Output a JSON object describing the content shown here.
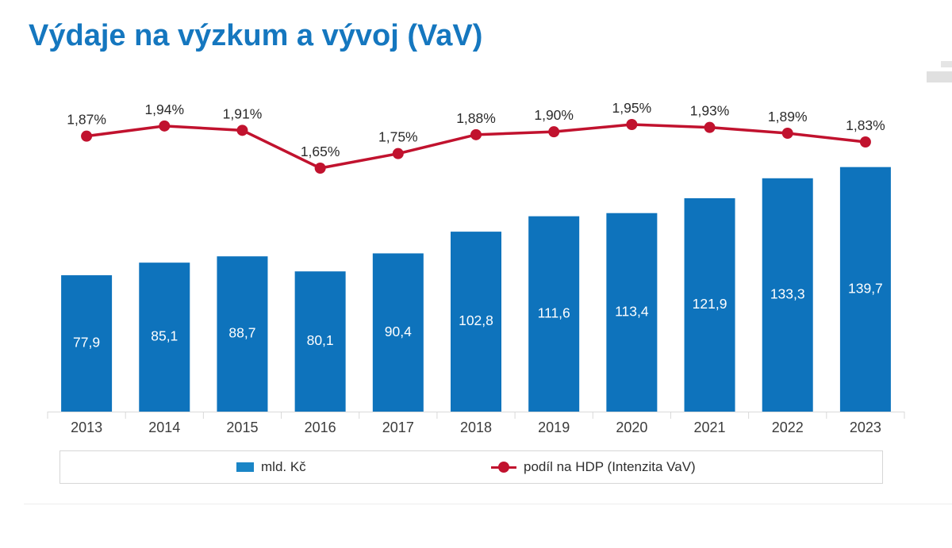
{
  "page": {
    "title": "Výdaje na výzkum a vývoj (VaV)"
  },
  "colors": {
    "title": "#1577bf",
    "bar": "#0e73bc",
    "bar_label": "#ffffff",
    "line": "#c1122e",
    "axis": "#d9d9d9",
    "tick_label": "#3c3c3c",
    "point_label": "#2b2b2b",
    "legend_border": "#d6d6d6"
  },
  "chart_data": {
    "type": "bar",
    "subtype": "bar-with-line-overlay",
    "title": "Výdaje na výzkum a vývoj (VaV)",
    "xlabel": "",
    "ylabel": "",
    "grid": false,
    "legend_position": "bottom",
    "categories": [
      "2013",
      "2014",
      "2015",
      "2016",
      "2017",
      "2018",
      "2019",
      "2020",
      "2021",
      "2022",
      "2023"
    ],
    "series": [
      {
        "name": "mld. Kč",
        "type": "bar",
        "axis_range": [
          0,
          140
        ],
        "values": [
          77.9,
          85.1,
          88.7,
          80.1,
          90.4,
          102.8,
          111.6,
          113.4,
          121.9,
          133.3,
          139.7
        ],
        "labels": [
          "77,9",
          "85,1",
          "88,7",
          "80,1",
          "90,4",
          "102,8",
          "111,6",
          "113,4",
          "121,9",
          "133,3",
          "139,7"
        ]
      },
      {
        "name": "podíl na HDP (Intenzita VaV)",
        "type": "line",
        "unit": "%",
        "values": [
          1.87,
          1.94,
          1.91,
          1.65,
          1.75,
          1.88,
          1.9,
          1.95,
          1.93,
          1.89,
          1.83
        ],
        "labels": [
          "1,87%",
          "1,94%",
          "1,91%",
          "1,65%",
          "1,75%",
          "1,88%",
          "1,90%",
          "1,95%",
          "1,93%",
          "1,89%",
          "1,83%"
        ]
      }
    ]
  },
  "legend": {
    "items": [
      {
        "label": "mld. Kč",
        "marker": "square"
      },
      {
        "label": "podíl na HDP (Intenzita VaV)",
        "marker": "line-dot"
      }
    ]
  }
}
